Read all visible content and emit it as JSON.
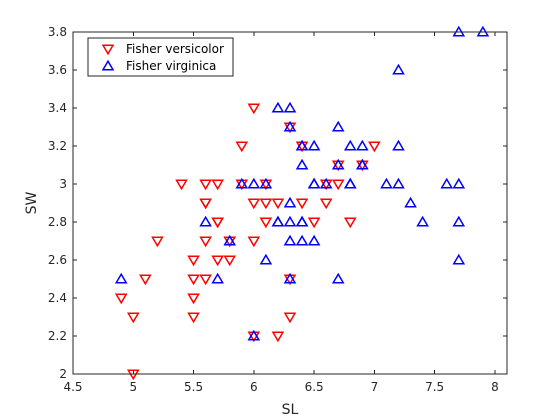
{
  "chart_data": {
    "type": "scatter",
    "title": "",
    "xlabel": "SL",
    "ylabel": "SW",
    "xlim": [
      4.5,
      8.1
    ],
    "ylim": [
      2.0,
      3.8
    ],
    "xticks": [
      "4.5",
      "5",
      "5.5",
      "6",
      "6.5",
      "7",
      "7.5",
      "8"
    ],
    "yticks": [
      "2",
      "2.2",
      "2.4",
      "2.6",
      "2.8",
      "3",
      "3.2",
      "3.4",
      "3.6",
      "3.8"
    ],
    "grid": false,
    "legend_placement": "top-left",
    "series": [
      {
        "name": "Fisher versicolor",
        "marker": "triangle-down",
        "color": "#ff0000",
        "points": [
          [
            7.0,
            3.2
          ],
          [
            6.4,
            3.2
          ],
          [
            6.9,
            3.1
          ],
          [
            5.5,
            2.3
          ],
          [
            6.5,
            2.8
          ],
          [
            5.7,
            2.8
          ],
          [
            6.3,
            3.3
          ],
          [
            4.9,
            2.4
          ],
          [
            6.6,
            2.9
          ],
          [
            5.2,
            2.7
          ],
          [
            5.0,
            2.0
          ],
          [
            5.9,
            3.0
          ],
          [
            6.0,
            2.2
          ],
          [
            6.1,
            2.9
          ],
          [
            5.6,
            2.9
          ],
          [
            6.7,
            3.1
          ],
          [
            5.6,
            3.0
          ],
          [
            5.8,
            2.7
          ],
          [
            6.2,
            2.2
          ],
          [
            5.6,
            2.5
          ],
          [
            5.9,
            3.2
          ],
          [
            6.1,
            2.8
          ],
          [
            6.3,
            2.5
          ],
          [
            6.4,
            2.9
          ],
          [
            6.6,
            3.0
          ],
          [
            6.8,
            2.8
          ],
          [
            6.7,
            3.0
          ],
          [
            6.0,
            2.9
          ],
          [
            5.7,
            2.6
          ],
          [
            5.5,
            2.4
          ],
          [
            5.8,
            2.7
          ],
          [
            6.0,
            2.7
          ],
          [
            5.4,
            3.0
          ],
          [
            6.0,
            3.4
          ],
          [
            6.3,
            2.3
          ],
          [
            5.5,
            2.5
          ],
          [
            5.5,
            2.6
          ],
          [
            6.1,
            3.0
          ],
          [
            5.8,
            2.6
          ],
          [
            5.0,
            2.3
          ],
          [
            5.6,
            2.7
          ],
          [
            5.7,
            3.0
          ],
          [
            6.2,
            2.9
          ],
          [
            5.1,
            2.5
          ],
          [
            5.7,
            2.8
          ],
          [
            5.6,
            2.9
          ]
        ]
      },
      {
        "name": "Fisher virginica",
        "marker": "triangle-up",
        "color": "#0000ff",
        "points": [
          [
            6.3,
            3.3
          ],
          [
            5.8,
            2.7
          ],
          [
            7.1,
            3.0
          ],
          [
            6.3,
            2.9
          ],
          [
            6.5,
            3.0
          ],
          [
            7.6,
            3.0
          ],
          [
            4.9,
            2.5
          ],
          [
            7.3,
            2.9
          ],
          [
            6.7,
            2.5
          ],
          [
            7.2,
            3.6
          ],
          [
            6.5,
            3.2
          ],
          [
            6.4,
            2.7
          ],
          [
            6.8,
            3.0
          ],
          [
            5.7,
            2.5
          ],
          [
            6.4,
            3.2
          ],
          [
            7.7,
            3.8
          ],
          [
            7.7,
            2.6
          ],
          [
            6.0,
            2.2
          ],
          [
            6.9,
            3.2
          ],
          [
            5.6,
            2.8
          ],
          [
            7.7,
            2.8
          ],
          [
            6.3,
            2.7
          ],
          [
            6.7,
            3.3
          ],
          [
            7.2,
            3.2
          ],
          [
            6.2,
            2.8
          ],
          [
            6.1,
            3.0
          ],
          [
            6.4,
            2.8
          ],
          [
            7.2,
            3.0
          ],
          [
            7.4,
            2.8
          ],
          [
            7.9,
            3.8
          ],
          [
            6.3,
            2.8
          ],
          [
            6.1,
            2.6
          ],
          [
            7.7,
            3.0
          ],
          [
            6.3,
            3.4
          ],
          [
            6.4,
            3.1
          ],
          [
            6.0,
            3.0
          ],
          [
            6.9,
            3.1
          ],
          [
            6.7,
            3.1
          ],
          [
            6.9,
            3.1
          ],
          [
            6.8,
            3.2
          ],
          [
            6.5,
            3.0
          ],
          [
            6.2,
            3.4
          ],
          [
            5.9,
            3.0
          ],
          [
            6.3,
            2.5
          ],
          [
            6.4,
            3.2
          ],
          [
            6.4,
            2.8
          ],
          [
            6.6,
            3.0
          ],
          [
            6.8,
            3.0
          ],
          [
            6.2,
            2.8
          ],
          [
            6.5,
            2.7
          ]
        ]
      }
    ]
  }
}
